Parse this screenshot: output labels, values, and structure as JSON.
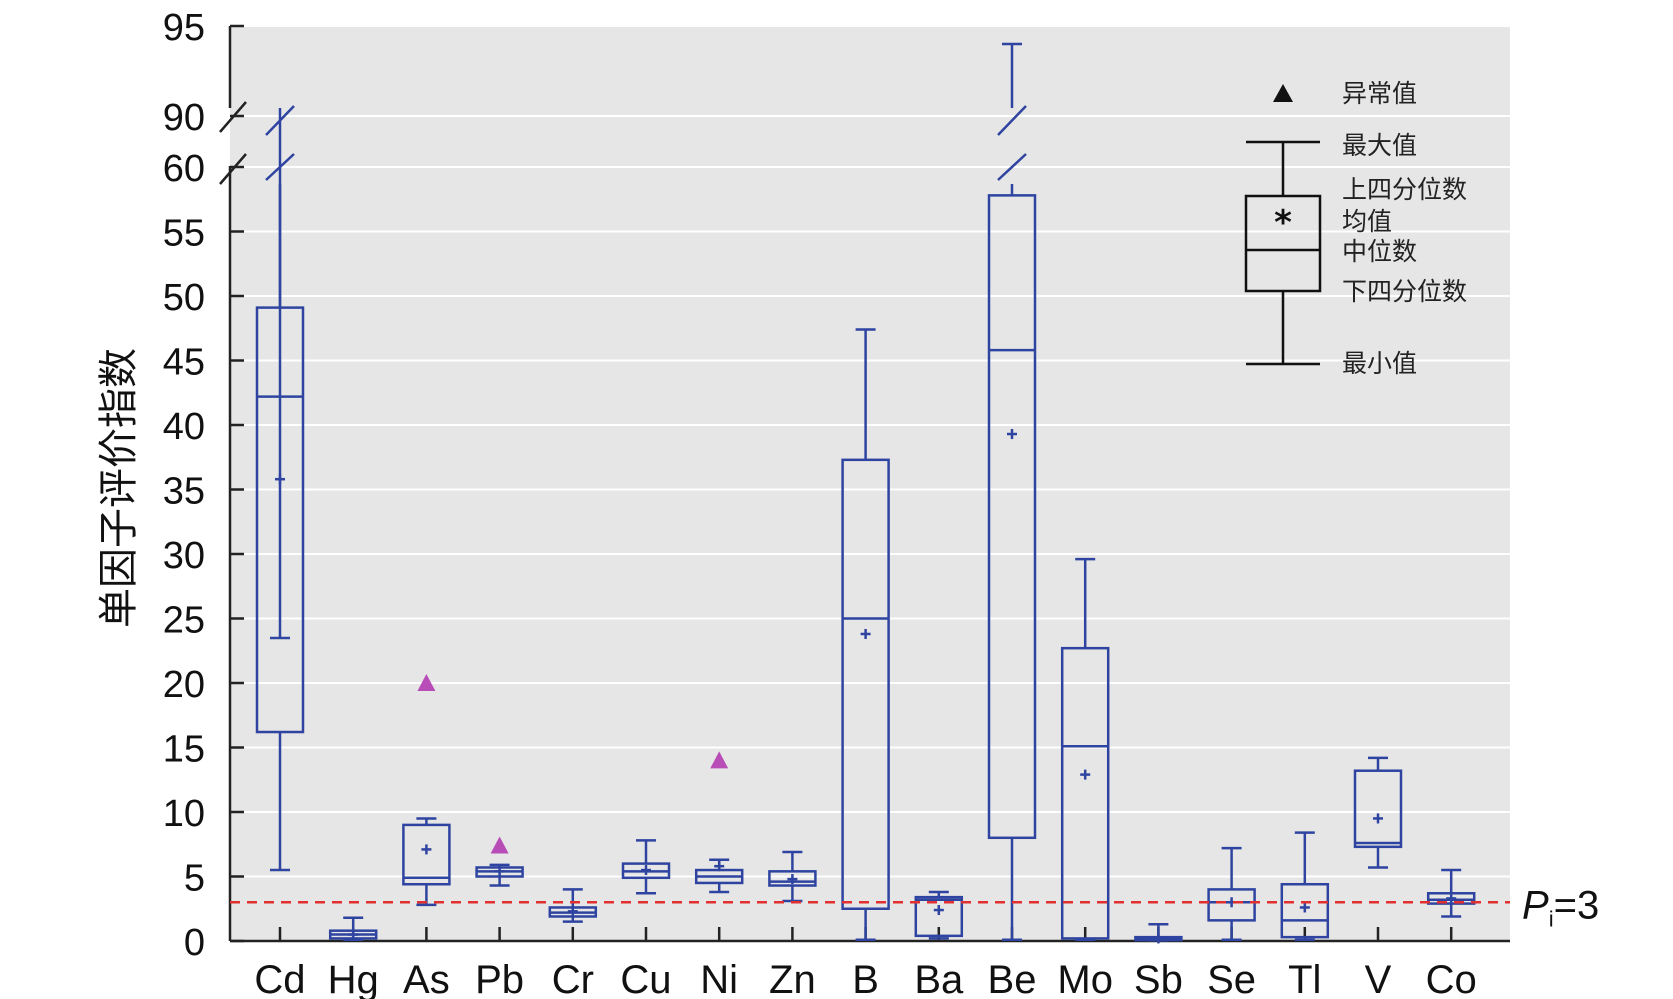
{
  "chart_data": {
    "type": "box",
    "ylabel": "单因子评价指数",
    "xlabel": "",
    "y_axis": {
      "lower_segment": [
        0,
        60
      ],
      "upper_segment": [
        90,
        95
      ],
      "ticks": [
        "0",
        "5",
        "10",
        "15",
        "20",
        "25",
        "30",
        "35",
        "40",
        "45",
        "50",
        "55",
        "60",
        "90",
        "95"
      ],
      "break_between": [
        60,
        90
      ]
    },
    "grid": true,
    "categories": [
      "Cd",
      "Hg",
      "As",
      "Pb",
      "Cr",
      "Cu",
      "Ni",
      "Zn",
      "B",
      "Ba",
      "Be",
      "Mo",
      "Sb",
      "Se",
      "Tl",
      "V",
      "Co"
    ],
    "boxes": [
      {
        "name": "Cd",
        "min": 5.5,
        "q1": 16.2,
        "median": 42.2,
        "q3": 49.1,
        "max": 61.0,
        "mean": 35.8
      },
      {
        "name": "Hg",
        "min": 0.1,
        "q1": 0.2,
        "median": 0.5,
        "q3": 0.8,
        "max": 1.8,
        "mean": 0.5
      },
      {
        "name": "As",
        "min": 2.8,
        "q1": 4.4,
        "median": 4.9,
        "q3": 9.0,
        "max": 9.5,
        "mean": 7.1,
        "outliers": [
          20.0
        ]
      },
      {
        "name": "Pb",
        "min": 4.3,
        "q1": 5.0,
        "median": 5.4,
        "q3": 5.7,
        "max": 5.9,
        "mean": 5.4,
        "outliers": [
          7.4
        ]
      },
      {
        "name": "Cr",
        "min": 1.5,
        "q1": 1.9,
        "median": 2.2,
        "q3": 2.6,
        "max": 4.0,
        "mean": 2.3
      },
      {
        "name": "Cu",
        "min": 3.7,
        "q1": 4.9,
        "median": 5.4,
        "q3": 6.0,
        "max": 7.8,
        "mean": 5.5
      },
      {
        "name": "Ni",
        "min": 3.8,
        "q1": 4.5,
        "median": 5.0,
        "q3": 5.5,
        "max": 6.3,
        "mean": 5.8,
        "outliers": [
          14.0
        ]
      },
      {
        "name": "Zn",
        "min": 3.1,
        "q1": 4.3,
        "median": 4.6,
        "q3": 5.4,
        "max": 6.9,
        "mean": 4.8
      },
      {
        "name": "B",
        "min": 0.1,
        "q1": 2.5,
        "median": 25.0,
        "q3": 37.3,
        "max": 47.4,
        "mean": 23.8
      },
      {
        "name": "Ba",
        "min": 0.2,
        "q1": 0.4,
        "median": 3.2,
        "q3": 3.4,
        "max": 3.8,
        "mean": 2.4
      },
      {
        "name": "Be",
        "min": 0.1,
        "q1": 8.0,
        "median": 45.8,
        "q3": 57.8,
        "max": 94.0,
        "mean": 39.3
      },
      {
        "name": "Mo",
        "min": 0.1,
        "q1": 0.2,
        "median": 15.1,
        "q3": 22.7,
        "max": 29.6,
        "mean": 12.9
      },
      {
        "name": "Sb",
        "min": 0.05,
        "q1": 0.1,
        "median": 0.2,
        "q3": 0.3,
        "max": 1.3,
        "mean": 0.2
      },
      {
        "name": "Se",
        "min": 0.1,
        "q1": 1.6,
        "median": 3.0,
        "q3": 4.0,
        "max": 7.2,
        "mean": 3.0
      },
      {
        "name": "Tl",
        "min": 0.1,
        "q1": 0.3,
        "median": 1.6,
        "q3": 4.4,
        "max": 8.4,
        "mean": 2.6
      },
      {
        "name": "V",
        "min": 5.7,
        "q1": 7.3,
        "median": 7.6,
        "q3": 13.2,
        "max": 14.2,
        "mean": 9.5
      },
      {
        "name": "Co",
        "min": 1.9,
        "q1": 2.9,
        "median": 3.2,
        "q3": 3.7,
        "max": 5.5,
        "mean": 3.3
      }
    ],
    "reference_line": {
      "value": 3,
      "label_main": "P",
      "label_sub": "i",
      "label_suffix": "=3",
      "color": "#e03030"
    },
    "legend": {
      "placement": "top-right",
      "outlier": "异常值",
      "max": "最大值",
      "q3": "上四分位数",
      "mean": "均值",
      "median": "中位数",
      "q1": "下四分位数",
      "min": "最小值"
    },
    "colors": {
      "box": "#2e44a0",
      "outlier": "#b84db8",
      "plot_bg": "#e6e6e6",
      "grid": "#ffffff",
      "axis": "#222222",
      "legend": "#111111"
    }
  }
}
